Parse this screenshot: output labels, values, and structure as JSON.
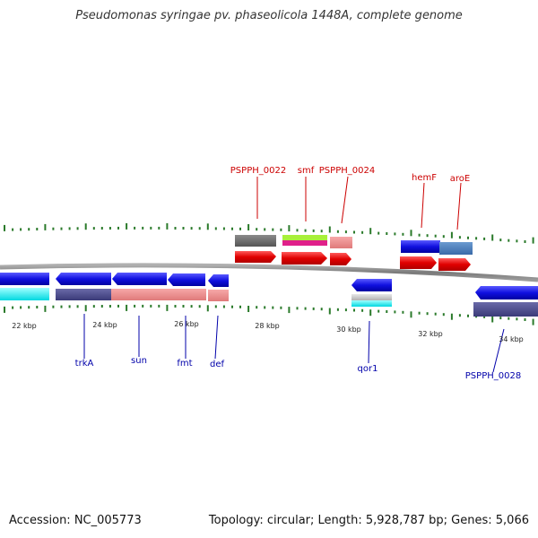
{
  "title": "Pseudomonas syringae pv. phaseolicola 1448A, complete genome",
  "footer": {
    "accession": "Accession: NC_005773",
    "stats": "Topology: circular; Length: 5,928,787 bp; Genes: 5,066"
  },
  "scale_labels": [
    "22 kbp",
    "24 kbp",
    "26 kbp",
    "28 kbp",
    "30 kbp",
    "32 kbp",
    "34 kbp"
  ],
  "forward_gene_labels": [
    "PSPPH_0022",
    "smf",
    "PSPPH_0024",
    "hemF",
    "aroE"
  ],
  "reverse_gene_labels": [
    "trkA",
    "sun",
    "fmt",
    "def",
    "qor1",
    "PSPPH_0028"
  ],
  "colors": {
    "forward_label": "#cc0000",
    "reverse_label": "#0000aa",
    "tick": "#2a7a2a",
    "backbone": "#8a8a8a"
  }
}
